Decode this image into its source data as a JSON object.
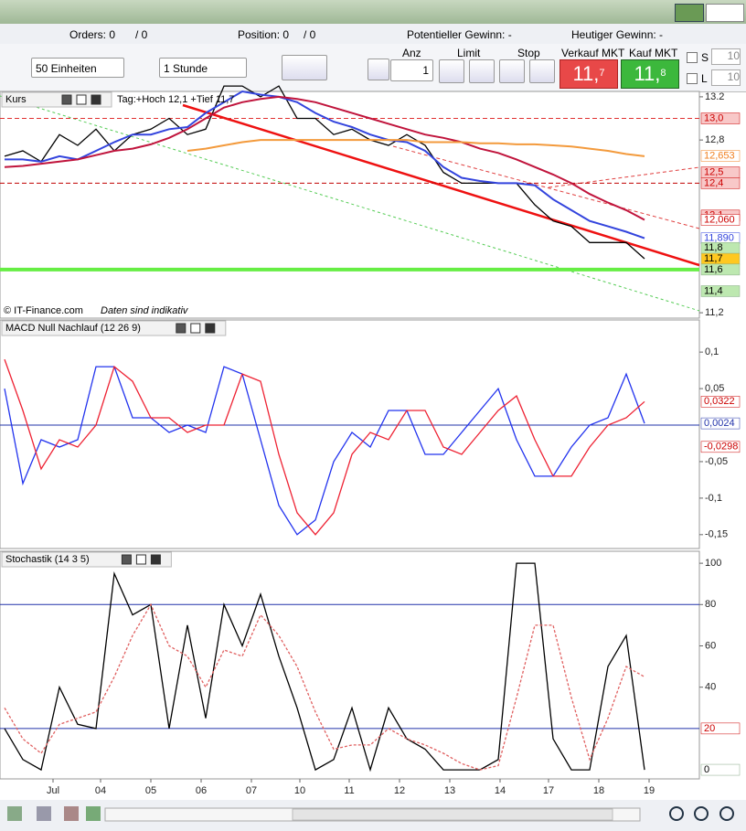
{
  "toolbar": {
    "orders": "Orders: 0",
    "orders_slash": "/ 0",
    "position": "Position: 0",
    "position_slash": "/ 0",
    "potential": "Potentieller Gewinn: -",
    "today": "Heutiger Gewinn: -"
  },
  "controls": {
    "units": "50 Einheiten",
    "interval": "1 Stunde",
    "anz_label": "Anz",
    "anz_value": "1",
    "limit": "Limit",
    "stop": "Stop",
    "sell_label": "Verkauf MKT",
    "sell_main": "11,",
    "sell_pip": "7",
    "buy_label": "Kauf MKT",
    "buy_main": "11,",
    "buy_pip": "8",
    "s_label": "S",
    "s_value": "10",
    "l_label": "L",
    "l_value": "10"
  },
  "chart_data": [
    {
      "type": "line",
      "title": "Kurs",
      "subtitle": "Tag:+Hoch 12,1 +Tief 11,7",
      "source": "© IT-Finance.com",
      "note": "Daten sind indikativ",
      "x": [
        0,
        1,
        2,
        3,
        4,
        5,
        6,
        7,
        8,
        9,
        10,
        11,
        12,
        13,
        14,
        15,
        16,
        17,
        18,
        19,
        20,
        21,
        22,
        23,
        24,
        25,
        26,
        27,
        28,
        29,
        30,
        31,
        32,
        33,
        34,
        35
      ],
      "xlim": [
        -0.25,
        38
      ],
      "ylim": [
        11.15,
        13.25
      ],
      "yticks": [
        13.2,
        {
          "value": 12.8,
          "label": "12,8"
        },
        {
          "value": 11.2,
          "label": "11,2"
        }
      ],
      "series": [
        {
          "name": "Kurs",
          "color": "#000000",
          "values": [
            12.65,
            12.7,
            12.6,
            12.85,
            12.75,
            12.9,
            12.7,
            12.85,
            12.9,
            13.0,
            12.85,
            12.9,
            13.3,
            13.3,
            13.2,
            13.3,
            13.0,
            13.0,
            12.85,
            12.9,
            12.8,
            12.75,
            12.85,
            12.75,
            12.5,
            12.4,
            12.4,
            12.4,
            12.4,
            12.2,
            12.05,
            12.0,
            11.85,
            11.85,
            11.85,
            11.7
          ]
        },
        {
          "color": "#3344dd",
          "values": [
            12.62,
            12.62,
            12.6,
            12.65,
            12.62,
            12.7,
            12.78,
            12.85,
            12.85,
            12.9,
            12.92,
            13.05,
            13.15,
            13.25,
            13.22,
            13.2,
            13.15,
            13.05,
            12.97,
            12.92,
            12.85,
            12.8,
            12.78,
            12.7,
            12.55,
            12.45,
            12.42,
            12.4,
            12.4,
            12.38,
            12.25,
            12.15,
            12.05,
            12.0,
            11.95,
            11.89
          ]
        },
        {
          "color": "#c0143c",
          "values": [
            12.55,
            12.56,
            12.58,
            12.6,
            12.62,
            12.66,
            12.7,
            12.72,
            12.76,
            12.82,
            12.9,
            13.0,
            13.1,
            13.15,
            13.18,
            13.2,
            13.18,
            13.15,
            13.1,
            13.05,
            13.0,
            12.95,
            12.9,
            12.85,
            12.82,
            12.78,
            12.72,
            12.68,
            12.62,
            12.55,
            12.48,
            12.4,
            12.3,
            12.22,
            12.15,
            12.06
          ]
        },
        {
          "color": "#f39a3c",
          "values": [
            null,
            null,
            null,
            null,
            null,
            null,
            null,
            null,
            null,
            null,
            12.7,
            12.72,
            12.75,
            12.78,
            12.8,
            12.8,
            12.8,
            12.8,
            12.8,
            12.8,
            12.8,
            12.8,
            12.8,
            12.78,
            12.78,
            12.78,
            12.77,
            12.77,
            12.76,
            12.76,
            12.75,
            12.74,
            12.72,
            12.7,
            12.67,
            12.65
          ]
        }
      ],
      "levels": [
        {
          "value": 13.0,
          "color": "#e03030",
          "style": "dashed"
        },
        {
          "value": 12.4,
          "color": "#c00000",
          "style": "dashed"
        },
        {
          "value": 11.6,
          "color": "#66ee44",
          "style": "solid"
        }
      ],
      "annotations": [
        {
          "value": 13.0,
          "label": "13,0",
          "color": "#cc0000",
          "fill": "#f8c8c8"
        },
        {
          "value": 12.653,
          "label": "12,653",
          "color": "#f08020",
          "fill": "#ffffff"
        },
        {
          "value": 12.5,
          "label": "12,5",
          "color": "#cc0000",
          "fill": "#f8c8c8"
        },
        {
          "value": 12.4,
          "label": "12,4",
          "color": "#cc0000",
          "fill": "#f8c8c8"
        },
        {
          "value": 12.1,
          "label": "12,1",
          "color": "#cc0000",
          "fill": "#f8c8c8"
        },
        {
          "value": 12.06,
          "label": "12,060",
          "color": "#cc0000",
          "fill": "#ffffff"
        },
        {
          "value": 11.89,
          "label": "11,890",
          "color": "#3344dd",
          "fill": "#ffffff"
        },
        {
          "value": 11.8,
          "label": "11,8",
          "color": "#000000",
          "fill": "#bde8b0"
        },
        {
          "value": 11.7,
          "label": "11,7",
          "color": "#000000",
          "fill": "#ffc820"
        },
        {
          "value": 11.6,
          "label": "11,6",
          "color": "#000000",
          "fill": "#bde8b0"
        },
        {
          "value": 11.4,
          "label": "11,4",
          "color": "#000000",
          "fill": "#bde8b0"
        }
      ]
    },
    {
      "type": "line",
      "title": "MACD Null Nachlauf (12 26 9)",
      "x": [
        0,
        1,
        2,
        3,
        4,
        5,
        6,
        7,
        8,
        9,
        10,
        11,
        12,
        13,
        14,
        15,
        16,
        17,
        18,
        19,
        20,
        21,
        22,
        23,
        24,
        25,
        26,
        27,
        28,
        29,
        30,
        31,
        32,
        33,
        34,
        35
      ],
      "xlim": [
        -0.25,
        38
      ],
      "ylim": [
        -0.169,
        0.144
      ],
      "yticks": [
        {
          "value": 0.1,
          "label": "0,1"
        },
        {
          "value": 0.05,
          "label": "0,05"
        },
        {
          "value": -0.05,
          "label": "-0,05"
        },
        {
          "value": -0.1,
          "label": "-0,1"
        },
        {
          "value": -0.15,
          "label": "-0,15"
        }
      ],
      "series": [
        {
          "color": "#2233ee",
          "values": [
            0.05,
            -0.08,
            -0.02,
            -0.03,
            -0.02,
            0.08,
            0.08,
            0.01,
            0.01,
            -0.01,
            0.0,
            -0.01,
            0.08,
            0.07,
            -0.02,
            -0.11,
            -0.15,
            -0.13,
            -0.05,
            -0.01,
            -0.03,
            0.02,
            0.02,
            -0.04,
            -0.04,
            -0.01,
            0.02,
            0.05,
            -0.02,
            -0.07,
            -0.07,
            -0.03,
            0.0,
            0.01,
            0.07,
            0.0024
          ]
        },
        {
          "color": "#ee2233",
          "values": [
            0.09,
            0.02,
            -0.06,
            -0.02,
            -0.03,
            0.0,
            0.08,
            0.06,
            0.01,
            0.01,
            -0.01,
            0.0,
            0.0,
            0.07,
            0.06,
            -0.04,
            -0.12,
            -0.15,
            -0.12,
            -0.04,
            -0.01,
            -0.02,
            0.02,
            0.02,
            -0.03,
            -0.04,
            -0.01,
            0.02,
            0.04,
            -0.02,
            -0.07,
            -0.07,
            -0.03,
            0.0,
            0.01,
            0.0322
          ]
        }
      ],
      "levels": [
        {
          "value": 0,
          "color": "#2233aa",
          "style": "solid"
        }
      ],
      "annotations": [
        {
          "value": 0.0322,
          "label": "0,0322",
          "color": "#cc0000",
          "fill": "#ffffff"
        },
        {
          "value": 0.0024,
          "label": "0,0024",
          "color": "#2233aa",
          "fill": "#ffffff"
        },
        {
          "value": -0.0298,
          "label": "-0,0298",
          "color": "#cc0000",
          "fill": "#ffffff"
        }
      ]
    },
    {
      "type": "line",
      "title": "Stochastik (14 3 5)",
      "x": [
        0,
        1,
        2,
        3,
        4,
        5,
        6,
        7,
        8,
        9,
        10,
        11,
        12,
        13,
        14,
        15,
        16,
        17,
        18,
        19,
        20,
        21,
        22,
        23,
        24,
        25,
        26,
        27,
        28,
        29,
        30,
        31,
        32,
        33,
        34,
        35
      ],
      "xlim": [
        -0.25,
        38
      ],
      "ylim": [
        -4.4,
        105.8
      ],
      "yticks": [
        40,
        60,
        80,
        100
      ],
      "xticks": [
        {
          "value": 2.65,
          "label": "Jul"
        },
        {
          "value": 5.25,
          "label": "04"
        },
        {
          "value": 8,
          "label": "05"
        },
        {
          "value": 10.75,
          "label": "06"
        },
        {
          "value": 13.5,
          "label": "07"
        },
        {
          "value": 16.15,
          "label": "10"
        },
        {
          "value": 18.85,
          "label": "11"
        },
        {
          "value": 21.6,
          "label": "12"
        },
        {
          "value": 24.35,
          "label": "13"
        },
        {
          "value": 27.1,
          "label": "14"
        },
        {
          "value": 29.75,
          "label": "17"
        },
        {
          "value": 32.5,
          "label": "18"
        },
        {
          "value": 35.25,
          "label": "19"
        }
      ],
      "series": [
        {
          "color": "#000000",
          "style": "solid",
          "values": [
            20,
            5,
            0,
            40,
            22,
            20,
            95,
            75,
            80,
            20,
            70,
            25,
            80,
            60,
            85,
            55,
            30,
            0,
            5,
            30,
            0,
            30,
            15,
            10,
            0,
            0,
            0,
            5,
            100,
            100,
            15,
            0,
            0,
            50,
            65,
            0
          ]
        },
        {
          "color": "#e06060",
          "style": "dashed",
          "values": [
            30,
            15,
            8,
            22,
            25,
            28,
            45,
            65,
            80,
            60,
            55,
            40,
            58,
            55,
            75,
            65,
            50,
            28,
            10,
            12,
            12,
            20,
            15,
            12,
            8,
            3,
            0,
            2,
            35,
            70,
            70,
            35,
            5,
            25,
            50,
            45
          ]
        }
      ],
      "levels": [
        {
          "value": 80,
          "color": "#2233aa",
          "style": "solid"
        },
        {
          "value": 20,
          "color": "#2233aa",
          "style": "solid"
        }
      ],
      "annotations": [
        {
          "value": 20,
          "label": "20",
          "color": "#cc0000",
          "fill": "#ffffff"
        },
        {
          "value": 0,
          "label": "0",
          "color": "#000000",
          "fill": "#ffffff"
        }
      ]
    }
  ]
}
